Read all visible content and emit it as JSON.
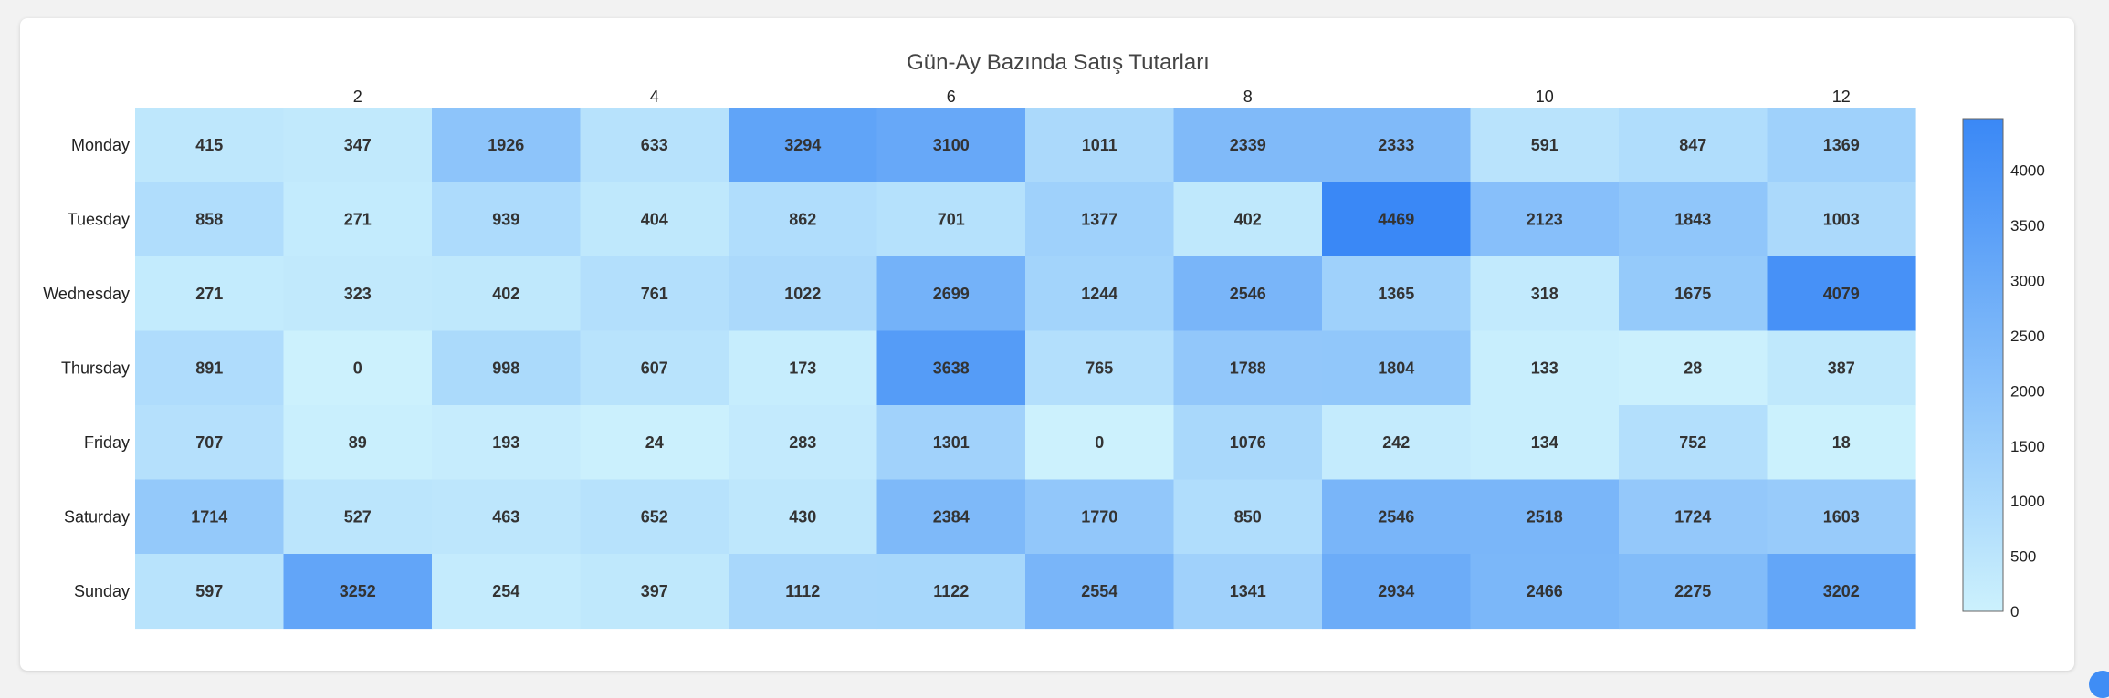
{
  "chart_data": {
    "type": "heatmap",
    "title": "Gün-Ay Bazında Satış Tutarları",
    "x": [
      1,
      2,
      3,
      4,
      5,
      6,
      7,
      8,
      9,
      10,
      11,
      12
    ],
    "x_tick_labels": [
      "2",
      "4",
      "6",
      "8",
      "10",
      "12"
    ],
    "y": [
      "Monday",
      "Tuesday",
      "Wednesday",
      "Thursday",
      "Friday",
      "Saturday",
      "Sunday"
    ],
    "values": [
      [
        415,
        347,
        1926,
        633,
        3294,
        3100,
        1011,
        2339,
        2333,
        591,
        847,
        1369
      ],
      [
        858,
        271,
        939,
        404,
        862,
        701,
        1377,
        402,
        4469,
        2123,
        1843,
        1003
      ],
      [
        271,
        323,
        402,
        761,
        1022,
        2699,
        1244,
        2546,
        1365,
        318,
        1675,
        4079
      ],
      [
        891,
        0,
        998,
        607,
        173,
        3638,
        765,
        1788,
        1804,
        133,
        28,
        387
      ],
      [
        707,
        89,
        193,
        24,
        283,
        1301,
        0,
        1076,
        242,
        134,
        752,
        18
      ],
      [
        1714,
        527,
        463,
        652,
        430,
        2384,
        1770,
        850,
        2546,
        2518,
        1724,
        1603
      ],
      [
        597,
        3252,
        254,
        397,
        1112,
        1122,
        2554,
        1341,
        2934,
        2466,
        2275,
        3202
      ]
    ],
    "color_range": [
      0,
      4469
    ],
    "colorscale": [
      "#ccf1fd",
      "#3a88f6"
    ],
    "colorbar_ticks": [
      0,
      500,
      1000,
      1500,
      2000,
      2500,
      3000,
      3500,
      4000
    ],
    "show_values": true,
    "grid": false,
    "xlabel": "",
    "ylabel": ""
  }
}
